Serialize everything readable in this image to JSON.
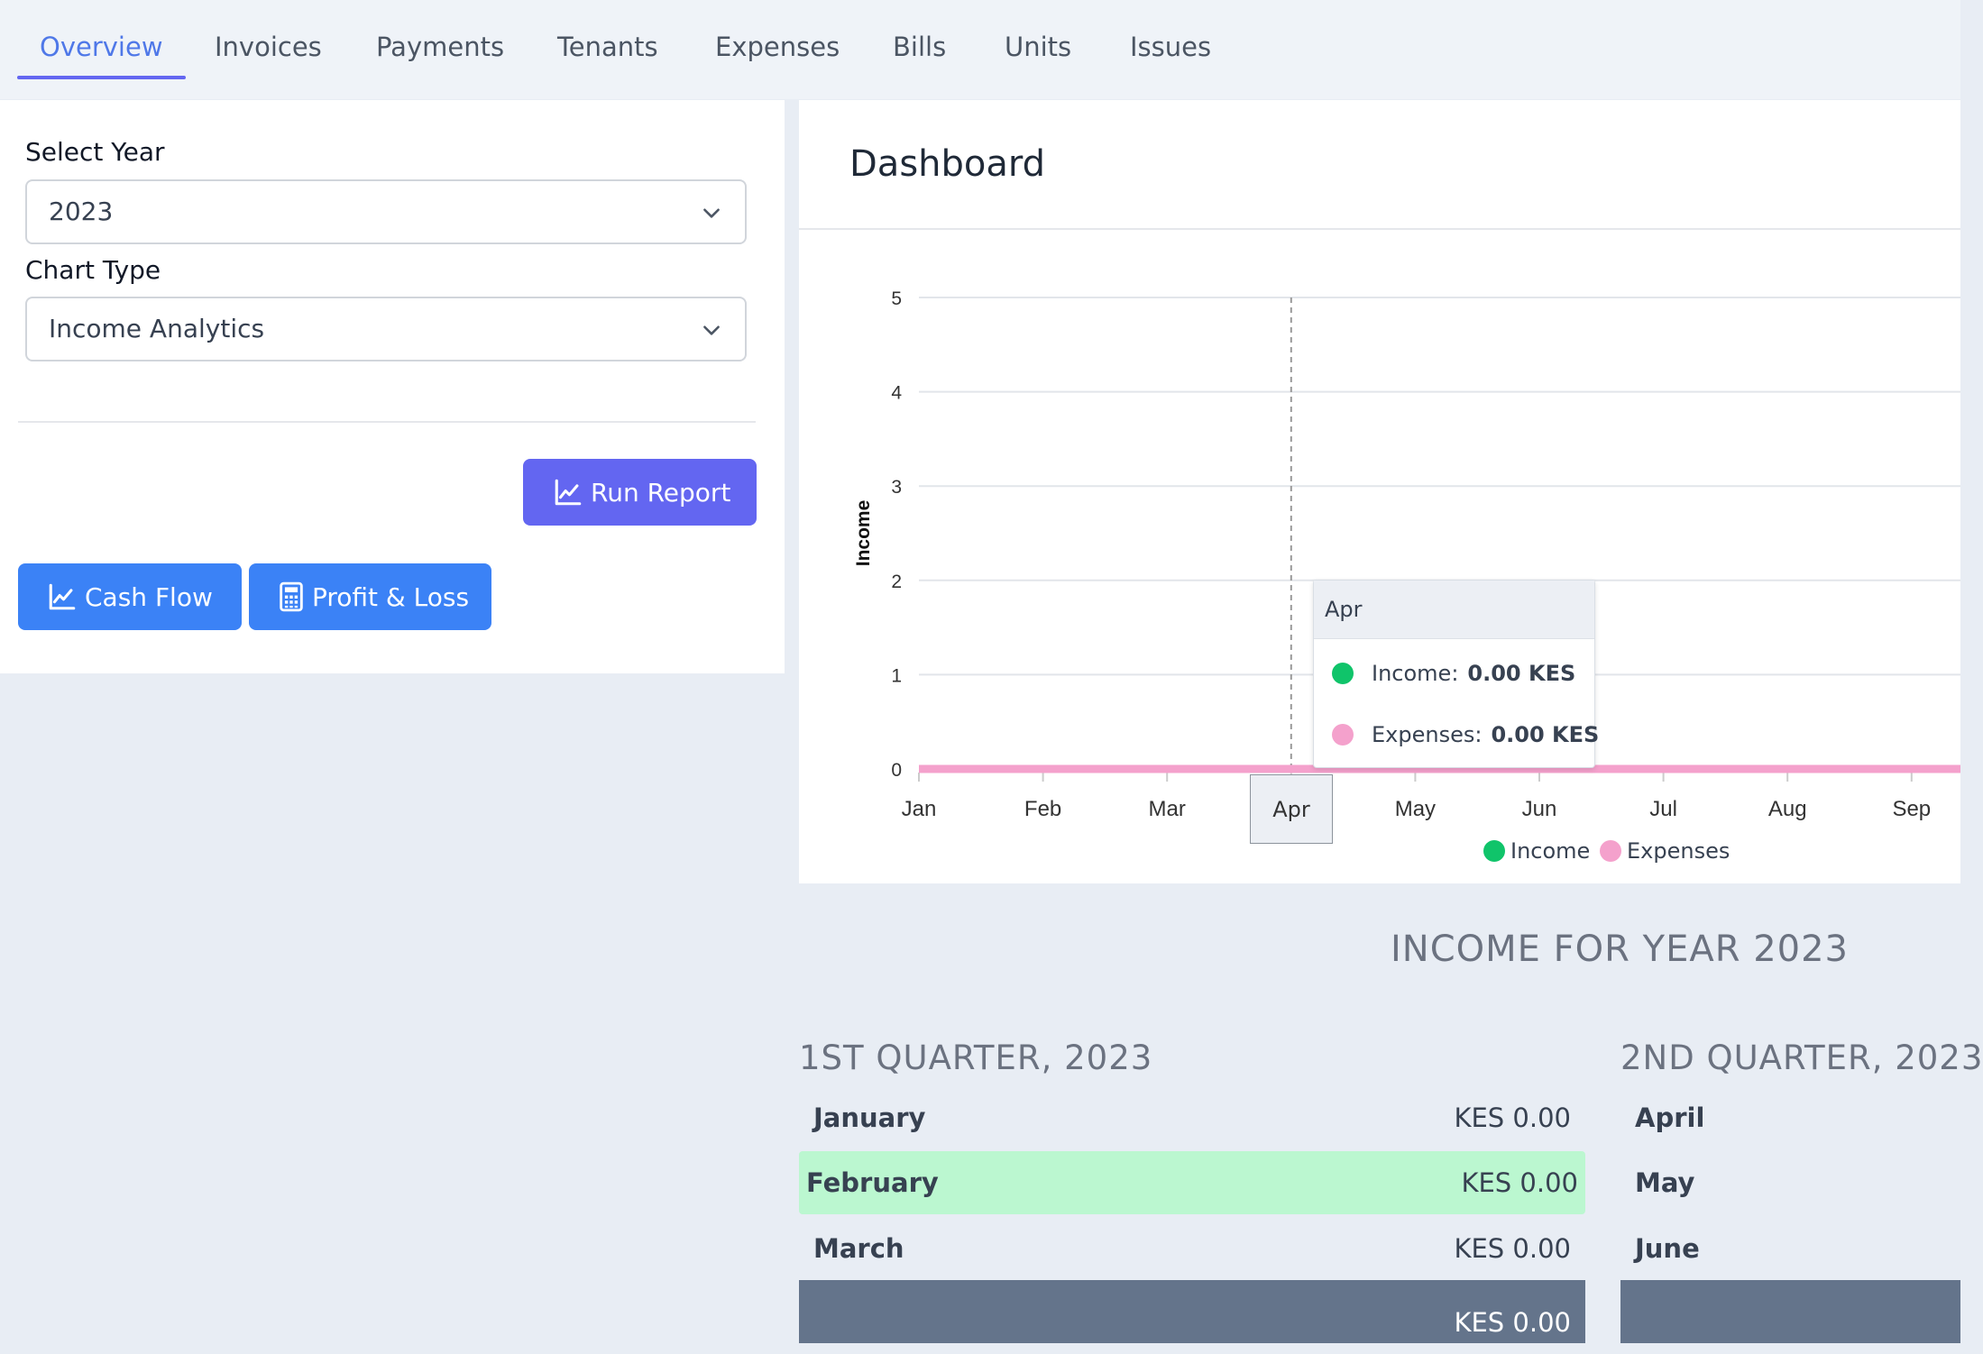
{
  "tabs": [
    {
      "label": "Overview",
      "active": true
    },
    {
      "label": "Invoices"
    },
    {
      "label": "Payments"
    },
    {
      "label": "Tenants"
    },
    {
      "label": "Expenses"
    },
    {
      "label": "Bills"
    },
    {
      "label": "Units"
    },
    {
      "label": "Issues"
    }
  ],
  "filters": {
    "year_label": "Select Year",
    "year_value": "2023",
    "chart_type_label": "Chart Type",
    "chart_type_value": "Income Analytics"
  },
  "buttons": {
    "run_report": "Run Report",
    "cash_flow": "Cash Flow",
    "profit_loss": "Profit & Loss"
  },
  "dashboard": {
    "title": "Dashboard",
    "tooltip": {
      "month": "Apr",
      "income_label": "Income:",
      "income_value": "0.00 KES",
      "expenses_label": "Expenses:",
      "expenses_value": "0.00 KES"
    }
  },
  "chart_data": {
    "type": "line",
    "title": "",
    "xlabel": "",
    "ylabel": "Income",
    "ylim": [
      0,
      5
    ],
    "yticks": [
      0,
      1,
      2,
      3,
      4,
      5
    ],
    "categories": [
      "Jan",
      "Feb",
      "Mar",
      "Apr",
      "May",
      "Jun",
      "Jul",
      "Aug",
      "Sep"
    ],
    "series": [
      {
        "name": "Income",
        "color": "#10c46a",
        "values": [
          0,
          0,
          0,
          0,
          0,
          0,
          0,
          0,
          0
        ]
      },
      {
        "name": "Expenses",
        "color": "#f4a1cc",
        "values": [
          0,
          0,
          0,
          0,
          0,
          0,
          0,
          0,
          0
        ]
      }
    ],
    "highlighted_category": "Apr",
    "legend_position": "bottom",
    "grid": true
  },
  "income": {
    "title": "INCOME FOR YEAR 2023",
    "quarters": [
      {
        "title": "1ST QUARTER, 2023",
        "rows": [
          {
            "month": "January",
            "value": "KES 0.00"
          },
          {
            "month": "February",
            "value": "KES 0.00"
          },
          {
            "month": "March",
            "value": "KES 0.00"
          }
        ],
        "total": "KES 0.00"
      },
      {
        "title": "2ND QUARTER, 2023",
        "rows": [
          {
            "month": "April"
          },
          {
            "month": "May"
          },
          {
            "month": "June"
          }
        ]
      }
    ]
  },
  "colors": {
    "primary_indigo": "#6366f1",
    "primary_blue": "#3b82f6",
    "active_tab": "#4f78e8",
    "highlight_row": "#bbf7d0",
    "total_row": "#64748b"
  }
}
